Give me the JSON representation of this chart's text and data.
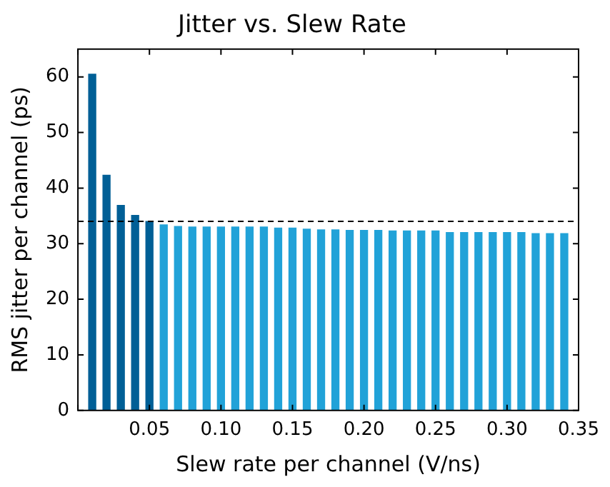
{
  "chart_data": {
    "type": "bar",
    "title": "Jitter vs. Slew Rate",
    "xlabel": "Slew rate per channel (V/ns)",
    "ylabel": "RMS jitter per channel (ps)",
    "x": [
      0.01,
      0.02,
      0.03,
      0.04,
      0.05,
      0.06,
      0.07,
      0.08,
      0.09,
      0.1,
      0.11,
      0.12,
      0.13,
      0.14,
      0.15,
      0.16,
      0.17,
      0.18,
      0.19,
      0.2,
      0.21,
      0.22,
      0.23,
      0.24,
      0.25,
      0.26,
      0.27,
      0.28,
      0.29,
      0.3,
      0.31,
      0.32,
      0.33,
      0.34
    ],
    "values": [
      60.5,
      42.3,
      36.9,
      35.1,
      34.0,
      33.4,
      33.1,
      33.0,
      33.0,
      33.0,
      33.0,
      33.0,
      33.0,
      32.8,
      32.8,
      32.6,
      32.5,
      32.5,
      32.4,
      32.4,
      32.4,
      32.3,
      32.3,
      32.3,
      32.3,
      32.0,
      32.0,
      32.0,
      32.0,
      32.0,
      32.0,
      31.8,
      31.8,
      31.8
    ],
    "colors": [
      "#005f96",
      "#005f96",
      "#005f96",
      "#005f96",
      "#005f96",
      "#21a2d8",
      "#21a2d8",
      "#21a2d8",
      "#21a2d8",
      "#21a2d8",
      "#21a2d8",
      "#21a2d8",
      "#21a2d8",
      "#21a2d8",
      "#21a2d8",
      "#21a2d8",
      "#21a2d8",
      "#21a2d8",
      "#21a2d8",
      "#21a2d8",
      "#21a2d8",
      "#21a2d8",
      "#21a2d8",
      "#21a2d8",
      "#21a2d8",
      "#21a2d8",
      "#21a2d8",
      "#21a2d8",
      "#21a2d8",
      "#21a2d8",
      "#21a2d8",
      "#21a2d8",
      "#21a2d8",
      "#21a2d8"
    ],
    "xlim": [
      0,
      0.35
    ],
    "xticks": [
      {
        "value": 0,
        "label": null
      },
      {
        "value": 0.05,
        "label": "0.05"
      },
      {
        "value": 0.1,
        "label": "0.10"
      },
      {
        "value": 0.15,
        "label": "0.15"
      },
      {
        "value": 0.2,
        "label": "0.20"
      },
      {
        "value": 0.25,
        "label": "0.25"
      },
      {
        "value": 0.3,
        "label": "0.30"
      },
      {
        "value": 0.35,
        "label": "0.35"
      }
    ],
    "ylim": [
      0,
      65
    ],
    "yticks": [
      0,
      10,
      20,
      30,
      40,
      50,
      60
    ],
    "ref_lines": [
      {
        "axis": "y",
        "value": 34,
        "color": "#000000",
        "line_style": "dashed"
      }
    ],
    "grid": false,
    "legend": false
  }
}
